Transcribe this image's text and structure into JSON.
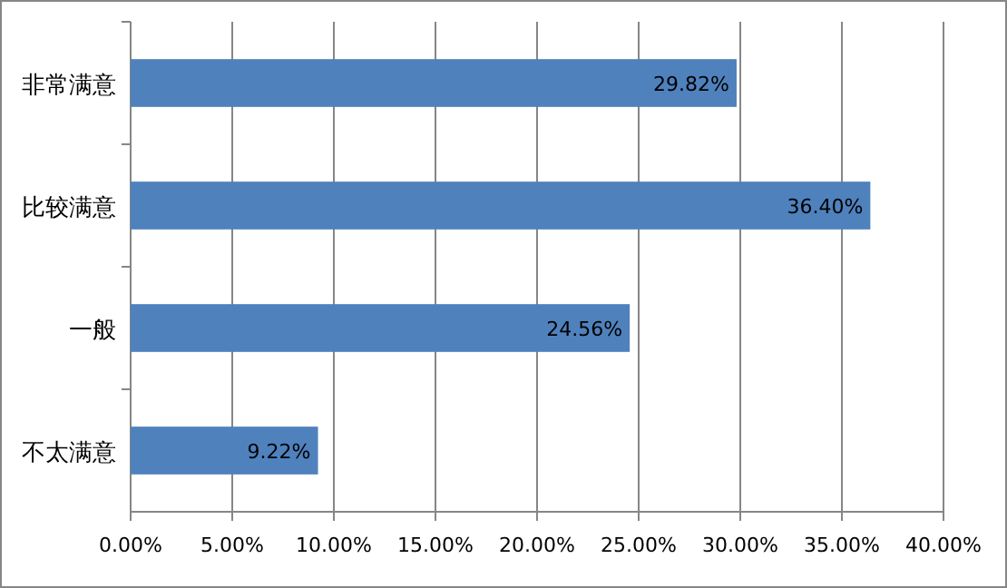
{
  "chart_data": {
    "type": "bar",
    "orientation": "horizontal",
    "categories": [
      "非常满意",
      "比较满意",
      "一般",
      "不太满意"
    ],
    "values": [
      29.82,
      36.4,
      24.56,
      9.22
    ],
    "value_labels": [
      "29.82%",
      "36.40%",
      "24.56%",
      "9.22%"
    ],
    "color": "#4f81bd",
    "xlim": [
      0,
      40
    ],
    "xticks": [
      {
        "value": 0,
        "label": "0.00%"
      },
      {
        "value": 5,
        "label": "5.00%"
      },
      {
        "value": 10,
        "label": "10.00%"
      },
      {
        "value": 15,
        "label": "15.00%"
      },
      {
        "value": 20,
        "label": "20.00%"
      },
      {
        "value": 25,
        "label": "25.00%"
      },
      {
        "value": 30,
        "label": "30.00%"
      },
      {
        "value": 35,
        "label": "35.00%"
      },
      {
        "value": 40,
        "label": "40.00%"
      }
    ],
    "grid": "x"
  }
}
